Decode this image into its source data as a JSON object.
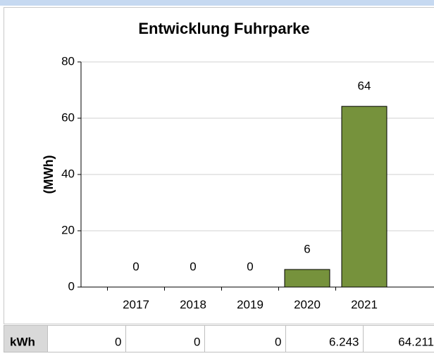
{
  "chart_data": {
    "type": "bar",
    "title": "Entwicklung Fuhrparke",
    "y_label": "(MWh)",
    "categories": [
      "2017",
      "2018",
      "2019",
      "2020",
      "2021"
    ],
    "values": [
      0,
      0,
      0,
      6.243,
      64.211
    ],
    "value_labels": [
      "0",
      "0",
      "0",
      "6",
      "64"
    ],
    "color": "#76923c",
    "ylim": [
      0,
      80
    ],
    "yticks": [
      0,
      20,
      40,
      60,
      80
    ],
    "grid": true
  },
  "table": {
    "header": "kWh",
    "cells": [
      "0",
      "0",
      "0",
      "6.243",
      "64.211"
    ]
  }
}
